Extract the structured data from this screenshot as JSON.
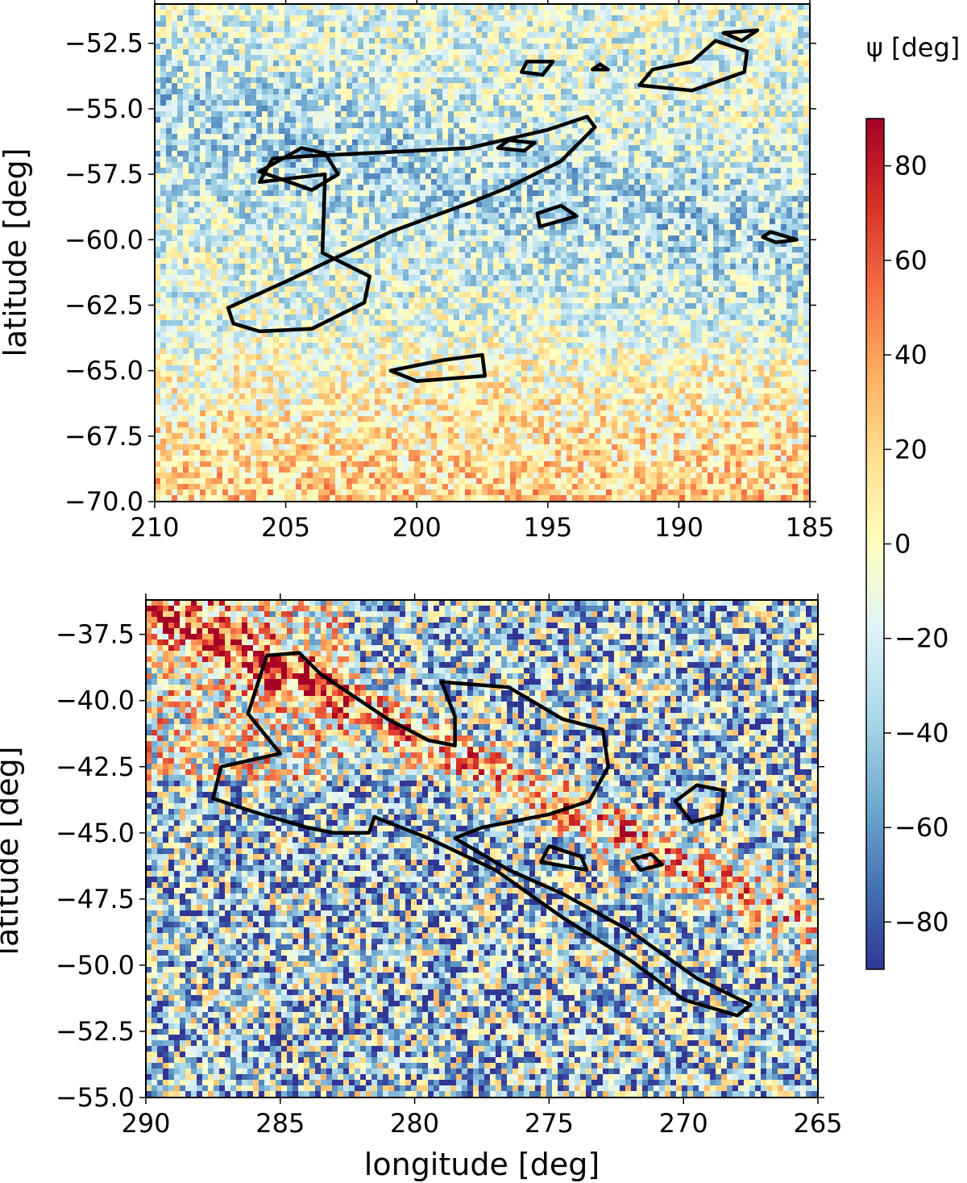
{
  "chart_data": [
    {
      "type": "heatmap",
      "xlabel": "",
      "ylabel": "latitude [deg]",
      "xlim": [
        210,
        185
      ],
      "ylim": [
        -70.0,
        -51.0
      ],
      "xticks": [
        210,
        205,
        200,
        195,
        190,
        185
      ],
      "yticks": [
        -52.5,
        -55.0,
        -57.5,
        -60.0,
        -62.5,
        -65.0,
        -67.5,
        -70.0
      ],
      "xtick_labels": [
        "210",
        "205",
        "200",
        "195",
        "190",
        "185"
      ],
      "ytick_labels": [
        "−52.5",
        "−55.0",
        "−57.5",
        "−60.0",
        "−62.5",
        "−65.0",
        "−67.5",
        "−70.0"
      ],
      "contours": [
        [
          [
            203.5,
            -57.5
          ],
          [
            206,
            -57.8
          ],
          [
            205.5,
            -56.9
          ],
          [
            204,
            -56.8
          ],
          [
            202,
            -56.7
          ],
          [
            198,
            -56.5
          ],
          [
            195,
            -55.8
          ],
          [
            193.5,
            -55.3
          ],
          [
            193.2,
            -55.7
          ],
          [
            194.5,
            -57
          ],
          [
            196.5,
            -58
          ],
          [
            198,
            -58.6
          ],
          [
            201,
            -59.7
          ],
          [
            205,
            -61.6
          ],
          [
            207.2,
            -62.6
          ],
          [
            207,
            -63.2
          ],
          [
            206,
            -63.5
          ],
          [
            204,
            -63.4
          ],
          [
            202,
            -62.4
          ],
          [
            201.8,
            -61.4
          ],
          [
            203.6,
            -60.5
          ],
          [
            203.5,
            -57.5
          ]
        ],
        [
          [
            206,
            -57.4
          ],
          [
            204.4,
            -56.5
          ],
          [
            203.5,
            -56.7
          ],
          [
            203,
            -57.5
          ],
          [
            204,
            -58.1
          ],
          [
            206,
            -57.4
          ]
        ],
        [
          [
            199,
            -64.6
          ],
          [
            197.5,
            -64.4
          ],
          [
            197.4,
            -65.2
          ],
          [
            200,
            -65.4
          ],
          [
            201,
            -65
          ],
          [
            199,
            -64.6
          ]
        ],
        [
          [
            196.5,
            -56.2
          ],
          [
            195.5,
            -56.3
          ],
          [
            195.9,
            -56.6
          ],
          [
            196.9,
            -56.5
          ],
          [
            196.5,
            -56.2
          ]
        ],
        [
          [
            194.5,
            -58.7
          ],
          [
            193.9,
            -59.1
          ],
          [
            195.3,
            -59.5
          ],
          [
            195.4,
            -59.0
          ],
          [
            194.5,
            -58.7
          ]
        ],
        [
          [
            194.8,
            -53.2
          ],
          [
            195.8,
            -53.2
          ],
          [
            196,
            -53.6
          ],
          [
            195.2,
            -53.7
          ],
          [
            194.8,
            -53.2
          ]
        ],
        [
          [
            192.7,
            -53.5
          ],
          [
            193.3,
            -53.5
          ],
          [
            193,
            -53.3
          ],
          [
            192.7,
            -53.5
          ]
        ],
        [
          [
            191,
            -53.5
          ],
          [
            189.5,
            -53.2
          ],
          [
            188.6,
            -52.4
          ],
          [
            187.4,
            -52.8
          ],
          [
            187.5,
            -53.6
          ],
          [
            189.5,
            -54.3
          ],
          [
            191.5,
            -54.1
          ],
          [
            191,
            -53.5
          ]
        ],
        [
          [
            188.3,
            -52.1
          ],
          [
            187,
            -52.0
          ],
          [
            187.6,
            -52.4
          ],
          [
            188.3,
            -52.1
          ]
        ],
        [
          [
            186.5,
            -59.7
          ],
          [
            185.5,
            -60.0
          ],
          [
            186.3,
            -60.1
          ],
          [
            186.8,
            -59.9
          ],
          [
            186.5,
            -59.7
          ]
        ]
      ]
    },
    {
      "type": "heatmap",
      "xlabel": "longitude [deg]",
      "ylabel": "latitude [deg]",
      "xlim": [
        290,
        265
      ],
      "ylim": [
        -55.0,
        -36.2
      ],
      "xticks": [
        290,
        285,
        280,
        275,
        270,
        265
      ],
      "yticks": [
        -37.5,
        -40.0,
        -42.5,
        -45.0,
        -47.5,
        -50.0,
        -52.5,
        -55.0
      ],
      "xtick_labels": [
        "290",
        "285",
        "280",
        "275",
        "270",
        "265"
      ],
      "ytick_labels": [
        "−37.5",
        "−40.0",
        "−42.5",
        "−45.0",
        "−47.5",
        "−50.0",
        "−52.5",
        "−55.0"
      ],
      "contours": [
        [
          [
            285.5,
            -38.3
          ],
          [
            284.3,
            -38.2
          ],
          [
            283.5,
            -39
          ],
          [
            281,
            -40.7
          ],
          [
            279.5,
            -41.5
          ],
          [
            278.5,
            -41.7
          ],
          [
            278.5,
            -40.6
          ],
          [
            279,
            -39.3
          ],
          [
            276.5,
            -39.5
          ],
          [
            274.5,
            -40.7
          ],
          [
            273,
            -41.1
          ],
          [
            272.8,
            -42.5
          ],
          [
            273.5,
            -43.8
          ],
          [
            275,
            -44.3
          ],
          [
            277.5,
            -44.8
          ],
          [
            278.5,
            -45.2
          ],
          [
            276.5,
            -46.4
          ],
          [
            274.5,
            -47.3
          ],
          [
            272,
            -48.7
          ],
          [
            269.5,
            -50.5
          ],
          [
            267.5,
            -51.5
          ],
          [
            268,
            -51.9
          ],
          [
            270,
            -51.3
          ],
          [
            272,
            -49.8
          ],
          [
            274.5,
            -48.2
          ],
          [
            277,
            -46.4
          ],
          [
            279.5,
            -45.2
          ],
          [
            281.5,
            -44.4
          ],
          [
            281.7,
            -45.0
          ],
          [
            283,
            -45
          ],
          [
            284,
            -44.8
          ],
          [
            286,
            -44.2
          ],
          [
            287.5,
            -43.7
          ],
          [
            287.2,
            -42.5
          ],
          [
            285,
            -42
          ],
          [
            286.2,
            -40.5
          ],
          [
            285.5,
            -38.3
          ]
        ],
        [
          [
            275,
            -45.5
          ],
          [
            273.8,
            -45.9
          ],
          [
            273.6,
            -46.4
          ],
          [
            275.3,
            -46.1
          ],
          [
            275,
            -45.5
          ]
        ],
        [
          [
            269.5,
            -43.2
          ],
          [
            270.3,
            -43.8
          ],
          [
            269.7,
            -44.6
          ],
          [
            268.6,
            -44.3
          ],
          [
            268.5,
            -43.4
          ],
          [
            269.5,
            -43.2
          ]
        ],
        [
          [
            271.2,
            -45.8
          ],
          [
            270.8,
            -46.2
          ],
          [
            271.6,
            -46.4
          ],
          [
            271.9,
            -46.0
          ],
          [
            271.2,
            -45.8
          ]
        ]
      ]
    }
  ],
  "colorbar": {
    "label": "ψ [deg]",
    "range": [
      -90,
      90
    ],
    "ticks": [
      80,
      60,
      40,
      20,
      0,
      -20,
      -40,
      -60,
      -80
    ],
    "tick_labels": [
      "80",
      "60",
      "40",
      "20",
      "0",
      "−20",
      "−40",
      "−60",
      "−80"
    ],
    "colormap": [
      "#313695",
      "#4575b4",
      "#74add1",
      "#abd9e9",
      "#e0f3f8",
      "#ffffbf",
      "#fee090",
      "#fdae61",
      "#f46d43",
      "#d73027",
      "#a50026"
    ]
  }
}
